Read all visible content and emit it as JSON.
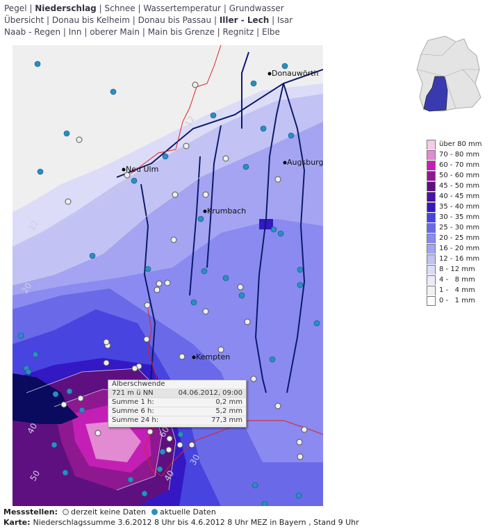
{
  "nav": [
    [
      {
        "label": "Pegel"
      },
      {
        "label": "Niederschlag",
        "active": true
      },
      {
        "label": "Schnee"
      },
      {
        "label": "Wassertemperatur"
      },
      {
        "label": "Grundwasser"
      }
    ],
    [
      {
        "label": "Übersicht"
      },
      {
        "label": "Donau bis Kelheim"
      },
      {
        "label": "Donau bis Passau"
      },
      {
        "label": "Iller - Lech",
        "active": true
      },
      {
        "label": "Isar"
      }
    ],
    [
      {
        "label": "Naab - Regen"
      },
      {
        "label": "Inn"
      },
      {
        "label": "oberer Main"
      },
      {
        "label": "Main bis Grenze"
      },
      {
        "label": "Regnitz"
      },
      {
        "label": "Elbe"
      }
    ]
  ],
  "separator": "|",
  "places": [
    "Donauwörth",
    "Augsburg",
    "Neu Ulm",
    "Krumbach",
    "Kempten"
  ],
  "contour_labels": [
    "12",
    "12",
    "20",
    "40",
    "50",
    "30",
    "40",
    "60"
  ],
  "tooltip": {
    "station": "Alberschwende",
    "elevation": "721 m ü NN",
    "time": "04.06.2012, 09:00",
    "rows": [
      {
        "label": "Summe 1 h:",
        "value": "0,2 mm"
      },
      {
        "label": "Summe 6 h:",
        "value": "5,2 mm"
      },
      {
        "label": "Summe 24 h:",
        "value": "77,3 mm"
      }
    ]
  },
  "legend": [
    {
      "label": "über 80 mm",
      "color": "#f6cbe9"
    },
    {
      "label": "70 - 80 mm",
      "color": "#e28ad2"
    },
    {
      "label": "60 - 70 mm",
      "color": "#c41fb4"
    },
    {
      "label": "50 - 60 mm",
      "color": "#8e1890"
    },
    {
      "label": "45 - 50 mm",
      "color": "#5e1080"
    },
    {
      "label": "40 - 45 mm",
      "color": "#4c10a4"
    },
    {
      "label": "35 - 40 mm",
      "color": "#3418c4"
    },
    {
      "label": "30 - 35 mm",
      "color": "#4844e0"
    },
    {
      "label": "25 - 30 mm",
      "color": "#6a6ae8"
    },
    {
      "label": "20 - 25 mm",
      "color": "#8a8af0"
    },
    {
      "label": "16 - 20 mm",
      "color": "#a4a4f2"
    },
    {
      "label": "12 - 16 mm",
      "color": "#c2c2f4"
    },
    {
      "label": "8 - 12 mm",
      "color": "#dcdcf8"
    },
    {
      "label": "4 -   8 mm",
      "color": "#ececf6"
    },
    {
      "label": "1 -   4 mm",
      "color": "#f2f2f2"
    },
    {
      "label": "0 -   1 mm",
      "color": "#ffffff"
    }
  ],
  "footer": {
    "stations_label": "Messstellen:",
    "no_data": "derzeit keine Daten",
    "current": "aktuelle Daten",
    "map_label": "Karte:",
    "map_text": "Niederschlagssumme 3.6.2012 8 Uhr bis 4.6.2012 8 Uhr MEZ in Bayern , Stand 9 Uhr"
  }
}
